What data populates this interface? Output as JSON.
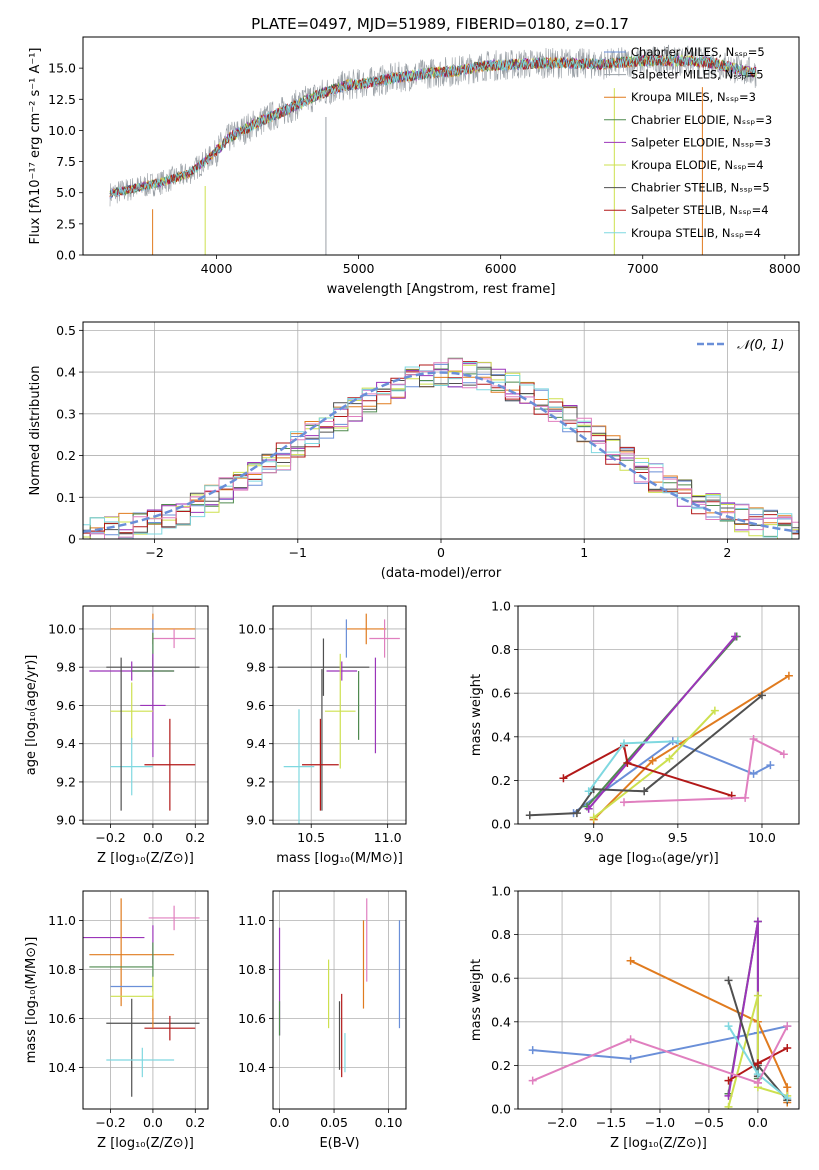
{
  "figure_title": "PLATE=0497, MJD=51989, FIBERID=0180, z=0.17",
  "colors": {
    "Chabrier MILES": "#6a8fd8",
    "Salpeter MILES": "#9aa0a6",
    "Kroupa MILES": "#e07b1f",
    "Chabrier ELODIE": "#4f8a4f",
    "Salpeter ELODIE": "#9b34b9",
    "Kroupa ELODIE": "#cde04f",
    "Chabrier STELIB": "#505050",
    "Salpeter STELIB": "#b21818",
    "Kroupa STELIB": "#7fd8e0",
    "pink": "#e07fbf",
    "normal": "#6a8fd8"
  },
  "chart_data": [
    {
      "id": "spectrum",
      "type": "line",
      "xlabel": "wavelength [Angstrom, rest frame]",
      "ylabel": "Flux [fλ10⁻¹⁷ erg cm⁻² s⁻¹ A⁻¹]",
      "xlim": [
        3060,
        8100
      ],
      "ylim": [
        0,
        17.5
      ],
      "xticks": [
        4000,
        5000,
        6000,
        7000,
        8000
      ],
      "yticks": [
        0.0,
        2.5,
        5.0,
        7.5,
        10.0,
        12.5,
        15.0
      ],
      "grid": false,
      "legend_position": "top-right",
      "legend": [
        {
          "label": "Chabrier MILES, N_SSP=5",
          "color": "#6a8fd8"
        },
        {
          "label": "Salpeter MILES, N_SSP=5",
          "color": "#9aa0a6"
        },
        {
          "label": "Kroupa MILES, N_SSP=3",
          "color": "#e07b1f"
        },
        {
          "label": "Chabrier ELODIE, N_SSP=3",
          "color": "#4f8a4f"
        },
        {
          "label": "Salpeter ELODIE, N_SSP=3",
          "color": "#9b34b9"
        },
        {
          "label": "Kroupa ELODIE, N_SSP=4",
          "color": "#cde04f"
        },
        {
          "label": "Chabrier STELIB, N_SSP=5",
          "color": "#505050"
        },
        {
          "label": "Salpeter STELIB, N_SSP=4",
          "color": "#b21818"
        },
        {
          "label": "Kroupa STELIB, N_SSP=4",
          "color": "#7fd8e0"
        }
      ],
      "continuum": {
        "x": [
          3250,
          3400,
          3600,
          3800,
          3950,
          4100,
          4300,
          4500,
          4700,
          4900,
          5100,
          5300,
          5500,
          5700,
          5900,
          6100,
          6300,
          6500,
          6700,
          6900,
          7100,
          7300,
          7500,
          7700,
          7800
        ],
        "y": [
          4.9,
          5.3,
          5.8,
          6.5,
          7.8,
          9.5,
          10.7,
          11.7,
          12.8,
          13.6,
          13.9,
          14.3,
          14.6,
          14.8,
          15.2,
          15.3,
          15.4,
          15.4,
          15.3,
          15.5,
          15.6,
          15.6,
          15.4,
          14.8,
          14.6
        ]
      },
      "data_range": [
        3250,
        7800
      ],
      "spikes": [
        3550,
        3920,
        4770,
        6800,
        7420
      ]
    },
    {
      "id": "residuals",
      "type": "line",
      "xlabel": "(data-model)/error",
      "ylabel": "Normed distribution",
      "xlim": [
        -2.5,
        2.5
      ],
      "ylim": [
        0,
        0.52
      ],
      "xticks": [
        -2,
        -1,
        0,
        1,
        2
      ],
      "yticks": [
        0.0,
        0.1,
        0.2,
        0.3,
        0.4,
        0.5
      ],
      "grid": true,
      "legend_position": "top-right",
      "legend": [
        {
          "label": "𝒩(0, 1)",
          "color": "#6a8fd8",
          "style": "dashed"
        }
      ],
      "normal_mean": 0,
      "normal_sigma": 1,
      "histogram_bin_width": 0.1
    },
    {
      "id": "age-vs-Z",
      "type": "scatter",
      "xlabel": "Z [log₁₀(Z/Z⊙)]",
      "ylabel": "age  [log₁₀(age/yr)]",
      "xlim": [
        -0.33,
        0.26
      ],
      "ylim": [
        8.98,
        10.12
      ],
      "xticks": [
        -0.2,
        0.0,
        0.2
      ],
      "yticks": [
        9.0,
        9.2,
        9.4,
        9.6,
        9.8,
        10.0
      ],
      "grid": true,
      "points": [
        {
          "x": 0.0,
          "y": 10.0,
          "xerr": 0.2,
          "yerr": 0.08,
          "color": "#e07b1f"
        },
        {
          "x": 0.0,
          "y": 9.95,
          "xerr": 0.0,
          "yerr": 0.1,
          "color": "#6a8fd8"
        },
        {
          "x": 0.1,
          "y": 9.95,
          "xerr": 0.1,
          "yerr": 0.05,
          "color": "#e07fbf"
        },
        {
          "x": 0.0,
          "y": 9.8,
          "xerr": 0.22,
          "yerr": 0.05,
          "color": "#505050"
        },
        {
          "x": -0.1,
          "y": 9.78,
          "xerr": 0.2,
          "yerr": 0.05,
          "color": "#9b34b9"
        },
        {
          "x": 0.0,
          "y": 9.78,
          "xerr": 0.1,
          "yerr": 0.2,
          "color": "#4f8a4f"
        },
        {
          "x": 0.0,
          "y": 9.6,
          "xerr": 0.06,
          "yerr": 0.27,
          "color": "#9b34b9"
        },
        {
          "x": -0.1,
          "y": 9.57,
          "xerr": 0.1,
          "yerr": 0.15,
          "color": "#cde04f"
        },
        {
          "x": -0.1,
          "y": 9.28,
          "xerr": 0.1,
          "yerr": 0.15,
          "color": "#7fd8e0"
        },
        {
          "x": -0.15,
          "y": 9.45,
          "xerr": 0.0,
          "yerr": 0.4,
          "color": "#505050"
        },
        {
          "x": 0.08,
          "y": 9.29,
          "xerr": 0.12,
          "yerr": 0.24,
          "color": "#b21818"
        }
      ]
    },
    {
      "id": "age-vs-mass",
      "type": "scatter",
      "xlabel": "mass [log₁₀(M/M⊙)]",
      "ylabel": "",
      "xlim": [
        10.25,
        11.12
      ],
      "ylim": [
        8.98,
        10.12
      ],
      "xticks": [
        10.5,
        11.0
      ],
      "yticks": [
        9.0,
        9.2,
        9.4,
        9.6,
        9.8,
        10.0
      ],
      "grid": true,
      "points": [
        {
          "x": 10.86,
          "y": 10.0,
          "xerr": 0.13,
          "yerr": 0.08,
          "color": "#e07b1f"
        },
        {
          "x": 10.73,
          "y": 9.95,
          "xerr": 0.0,
          "yerr": 0.1,
          "color": "#6a8fd8"
        },
        {
          "x": 10.98,
          "y": 9.95,
          "xerr": 0.1,
          "yerr": 0.1,
          "color": "#e07fbf"
        },
        {
          "x": 10.58,
          "y": 9.8,
          "xerr": 0.3,
          "yerr": 0.15,
          "color": "#505050"
        },
        {
          "x": 10.7,
          "y": 9.78,
          "xerr": 0.1,
          "yerr": 0.05,
          "color": "#9b34b9"
        },
        {
          "x": 10.81,
          "y": 9.6,
          "xerr": 0.0,
          "yerr": 0.18,
          "color": "#4f8a4f"
        },
        {
          "x": 10.92,
          "y": 9.6,
          "xerr": 0.0,
          "yerr": 0.25,
          "color": "#9b34b9"
        },
        {
          "x": 10.69,
          "y": 9.57,
          "xerr": 0.1,
          "yerr": 0.3,
          "color": "#cde04f"
        },
        {
          "x": 10.42,
          "y": 9.28,
          "xerr": 0.1,
          "yerr": 0.3,
          "color": "#7fd8e0"
        },
        {
          "x": 10.57,
          "y": 9.42,
          "xerr": 0.0,
          "yerr": 0.37,
          "color": "#505050"
        },
        {
          "x": 10.56,
          "y": 9.29,
          "xerr": 0.12,
          "yerr": 0.24,
          "color": "#b21818"
        }
      ]
    },
    {
      "id": "weight-vs-age",
      "type": "line",
      "xlabel": "age  [log₁₀(age/yr)]",
      "ylabel": "mass weight",
      "xlim": [
        8.55,
        10.22
      ],
      "ylim": [
        0,
        1.0
      ],
      "xticks": [
        9.0,
        9.5,
        10.0
      ],
      "yticks": [
        0.0,
        0.2,
        0.4,
        0.6,
        0.8,
        1.0
      ],
      "grid": true,
      "series": [
        {
          "color": "#6a8fd8",
          "x": [
            8.88,
            9.47,
            9.95,
            10.05
          ],
          "y": [
            0.05,
            0.38,
            0.23,
            0.27
          ]
        },
        {
          "color": "#e07b1f",
          "x": [
            9.0,
            9.35,
            10.16
          ],
          "y": [
            0.02,
            0.29,
            0.68
          ]
        },
        {
          "color": "#4f8a4f",
          "x": [
            8.96,
            9.85
          ],
          "y": [
            0.08,
            0.86
          ]
        },
        {
          "color": "#9b34b9",
          "x": [
            8.97,
            9.84
          ],
          "y": [
            0.07,
            0.86
          ]
        },
        {
          "color": "#cde04f",
          "x": [
            9.0,
            9.45,
            9.72
          ],
          "y": [
            0.03,
            0.3,
            0.52
          ]
        },
        {
          "color": "#505050",
          "x": [
            8.62,
            8.9,
            9.0,
            9.3,
            10.0
          ],
          "y": [
            0.04,
            0.05,
            0.16,
            0.15,
            0.59
          ]
        },
        {
          "color": "#b21818",
          "x": [
            8.82,
            9.18,
            9.2,
            9.82
          ],
          "y": [
            0.21,
            0.36,
            0.28,
            0.13
          ]
        },
        {
          "color": "#7fd8e0",
          "x": [
            8.97,
            9.18,
            9.5
          ],
          "y": [
            0.15,
            0.37,
            0.38
          ]
        },
        {
          "color": "#e07fbf",
          "x": [
            9.18,
            9.9,
            9.95,
            10.13
          ],
          "y": [
            0.1,
            0.12,
            0.39,
            0.32
          ]
        }
      ]
    },
    {
      "id": "mass-vs-Z",
      "type": "scatter",
      "xlabel": "Z [log₁₀(Z/Z⊙)]",
      "ylabel": "mass [log₁₀(M/M⊙)]",
      "xlim": [
        -0.33,
        0.26
      ],
      "ylim": [
        10.23,
        11.12
      ],
      "xticks": [
        -0.2,
        0.0,
        0.2
      ],
      "yticks": [
        10.4,
        10.6,
        10.8,
        11.0
      ],
      "grid": true,
      "points": [
        {
          "x": 0.1,
          "y": 11.01,
          "xerr": 0.12,
          "yerr": 0.05,
          "color": "#e07fbf"
        },
        {
          "x": -0.2,
          "y": 10.93,
          "xerr": 0.16,
          "yerr": 0.0,
          "color": "#9b34b9"
        },
        {
          "x": 0.0,
          "y": 10.9,
          "xerr": 0.0,
          "yerr": 0.08,
          "color": "#9b34b9"
        },
        {
          "x": -0.15,
          "y": 10.87,
          "xerr": 0.0,
          "yerr": 0.22,
          "color": "#e07b1f"
        },
        {
          "x": -0.1,
          "y": 10.86,
          "xerr": 0.2,
          "yerr": 0.0,
          "color": "#e07b1f"
        },
        {
          "x": -0.15,
          "y": 10.81,
          "xerr": 0.15,
          "yerr": 0.0,
          "color": "#4f8a4f"
        },
        {
          "x": 0.0,
          "y": 10.81,
          "xerr": 0.0,
          "yerr": 0.1,
          "color": "#4f8a4f"
        },
        {
          "x": -0.1,
          "y": 10.73,
          "xerr": 0.1,
          "yerr": 0.0,
          "color": "#6a8fd8"
        },
        {
          "x": -0.1,
          "y": 10.69,
          "xerr": 0.1,
          "yerr": 0.0,
          "color": "#cde04f"
        },
        {
          "x": 0.0,
          "y": 10.7,
          "xerr": 0.0,
          "yerr": 0.07,
          "color": "#cde04f"
        },
        {
          "x": 0.0,
          "y": 10.58,
          "xerr": 0.22,
          "yerr": 0.0,
          "color": "#505050"
        },
        {
          "x": 0.08,
          "y": 10.56,
          "xerr": 0.12,
          "yerr": 0.05,
          "color": "#b21818"
        },
        {
          "x": -0.1,
          "y": 10.48,
          "xerr": 0.0,
          "yerr": 0.2,
          "color": "#505050"
        },
        {
          "x": -0.05,
          "y": 10.42,
          "xerr": 0.0,
          "yerr": 0.06,
          "color": "#7fd8e0"
        },
        {
          "x": -0.06,
          "y": 10.43,
          "xerr": 0.16,
          "yerr": 0.0,
          "color": "#7fd8e0"
        },
        {
          "x": 0.0,
          "y": 10.62,
          "xerr": 0.0,
          "yerr": 0.06,
          "color": "#e07b1f"
        }
      ]
    },
    {
      "id": "mass-vs-EBV",
      "type": "scatter",
      "xlabel": "E(B-V)",
      "ylabel": "",
      "xlim": [
        -0.006,
        0.116
      ],
      "ylim": [
        10.23,
        11.12
      ],
      "xticks": [
        0.0,
        0.05,
        0.1
      ],
      "yticks": [
        10.4,
        10.6,
        10.8,
        11.0
      ],
      "grid": true,
      "points": [
        {
          "x": 0.0,
          "y": 10.75,
          "xerr": 0,
          "yerr": 0.22,
          "color": "#9b34b9"
        },
        {
          "x": 0.0,
          "y": 10.6,
          "xerr": 0,
          "yerr": 0.07,
          "color": "#4f8a4f"
        },
        {
          "x": 0.045,
          "y": 10.7,
          "xerr": 0,
          "yerr": 0.14,
          "color": "#cde04f"
        },
        {
          "x": 0.055,
          "y": 10.53,
          "xerr": 0,
          "yerr": 0.14,
          "color": "#505050"
        },
        {
          "x": 0.057,
          "y": 10.53,
          "xerr": 0,
          "yerr": 0.17,
          "color": "#b21818"
        },
        {
          "x": 0.06,
          "y": 10.46,
          "xerr": 0,
          "yerr": 0.08,
          "color": "#7fd8e0"
        },
        {
          "x": 0.077,
          "y": 10.82,
          "xerr": 0,
          "yerr": 0.18,
          "color": "#e07b1f"
        },
        {
          "x": 0.08,
          "y": 10.92,
          "xerr": 0,
          "yerr": 0.17,
          "color": "#e07fbf"
        },
        {
          "x": 0.11,
          "y": 10.78,
          "xerr": 0,
          "yerr": 0.22,
          "color": "#6a8fd8"
        }
      ]
    },
    {
      "id": "weight-vs-Z",
      "type": "line",
      "xlabel": "Z [log₁₀(Z/Z⊙)]",
      "ylabel": "mass weight",
      "xlim": [
        -2.45,
        0.42
      ],
      "ylim": [
        0,
        1.0
      ],
      "xticks": [
        -2.0,
        -1.5,
        -1.0,
        -0.5,
        0.0
      ],
      "yticks": [
        0.0,
        0.2,
        0.4,
        0.6,
        0.8,
        1.0
      ],
      "grid": true,
      "series": [
        {
          "color": "#6a8fd8",
          "x": [
            -2.3,
            -1.3,
            0.0,
            0.3
          ],
          "y": [
            0.27,
            0.23,
            0.35,
            0.38
          ]
        },
        {
          "color": "#e07b1f",
          "x": [
            -1.3,
            0.0,
            0.3,
            0.3
          ],
          "y": [
            0.68,
            0.4,
            0.1,
            0.03
          ]
        },
        {
          "color": "#4f8a4f",
          "x": [
            -0.3,
            0.0,
            0.0
          ],
          "y": [
            0.07,
            0.86,
            0.14
          ]
        },
        {
          "color": "#9b34b9",
          "x": [
            -0.3,
            0.0,
            0.0
          ],
          "y": [
            0.06,
            0.86,
            0.12
          ]
        },
        {
          "color": "#cde04f",
          "x": [
            -0.3,
            0.0,
            0.0,
            0.3
          ],
          "y": [
            0.01,
            0.52,
            0.1,
            0.06
          ]
        },
        {
          "color": "#505050",
          "x": [
            -0.3,
            0.0,
            0.0,
            0.3
          ],
          "y": [
            0.59,
            0.15,
            0.2,
            0.04
          ]
        },
        {
          "color": "#b21818",
          "x": [
            -0.3,
            0.0,
            0.3
          ],
          "y": [
            0.13,
            0.21,
            0.28
          ]
        },
        {
          "color": "#7fd8e0",
          "x": [
            -0.3,
            0.0,
            0.3
          ],
          "y": [
            0.38,
            0.16,
            0.05
          ]
        },
        {
          "color": "#e07fbf",
          "x": [
            -2.3,
            -1.3,
            0.0,
            0.3
          ],
          "y": [
            0.13,
            0.32,
            0.12,
            0.38
          ]
        }
      ]
    }
  ]
}
